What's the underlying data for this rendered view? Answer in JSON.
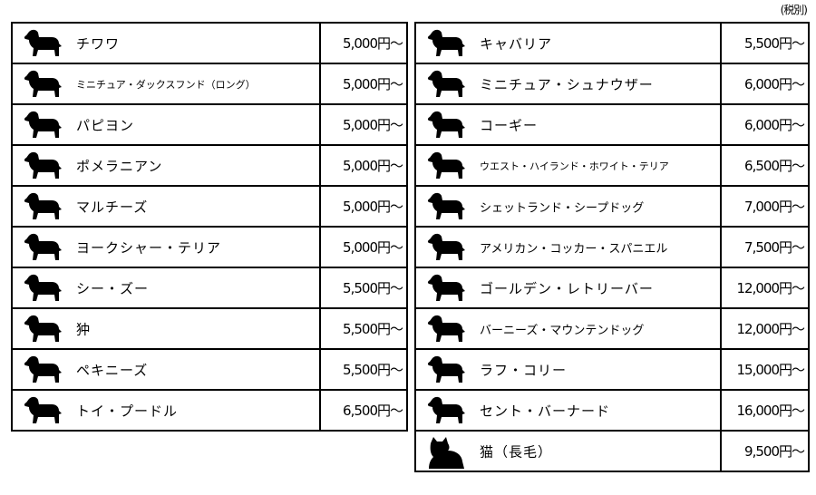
{
  "tax_note": "(税別)",
  "left_table": [
    {
      "name": "チワワ",
      "price": "5,000円〜",
      "icon": "chihuahua-icon"
    },
    {
      "name": "ミニチュア・ダックスフンド（ロング）",
      "price": "5,000円〜",
      "icon": "dachshund-icon"
    },
    {
      "name": "パピヨン",
      "price": "5,000円〜",
      "icon": "papillon-icon"
    },
    {
      "name": "ポメラニアン",
      "price": "5,000円〜",
      "icon": "pomeranian-icon"
    },
    {
      "name": "マルチーズ",
      "price": "5,000円〜",
      "icon": "maltese-icon"
    },
    {
      "name": "ヨークシャー・テリア",
      "price": "5,000円〜",
      "icon": "yorkshire-terrier-icon"
    },
    {
      "name": "シー・ズー",
      "price": "5,500円〜",
      "icon": "shih-tzu-icon"
    },
    {
      "name": "狆",
      "price": "5,500円〜",
      "icon": "japanese-chin-icon"
    },
    {
      "name": "ペキニーズ",
      "price": "5,500円〜",
      "icon": "pekingese-icon"
    },
    {
      "name": "トイ・プードル",
      "price": "6,500円〜",
      "icon": "toy-poodle-icon"
    }
  ],
  "right_table": [
    {
      "name": "キャバリア",
      "price": "5,500円〜",
      "icon": "cavalier-icon"
    },
    {
      "name": "ミニチュア・シュナウザー",
      "price": "6,000円〜",
      "icon": "schnauzer-icon"
    },
    {
      "name": "コーギー",
      "price": "6,000円〜",
      "icon": "corgi-icon"
    },
    {
      "name": "ウエスト・ハイランド・ホワイト・テリア",
      "price": "6,500円〜",
      "icon": "westie-icon"
    },
    {
      "name": "シェットランド・シープドッグ",
      "price": "7,000円〜",
      "icon": "sheltie-icon"
    },
    {
      "name": "アメリカン・コッカー・スパニエル",
      "price": "7,500円〜",
      "icon": "cocker-spaniel-icon"
    },
    {
      "name": "ゴールデン・レトリーバー",
      "price": "12,000円〜",
      "icon": "golden-retriever-icon"
    },
    {
      "name": "バーニーズ・マウンテンドッグ",
      "price": "12,000円〜",
      "icon": "bernese-icon"
    },
    {
      "name": "ラフ・コリー",
      "price": "15,000円〜",
      "icon": "rough-collie-icon"
    },
    {
      "name": "セント・バーナード",
      "price": "16,000円〜",
      "icon": "saint-bernard-icon"
    },
    {
      "name": "猫（長毛）",
      "price": "9,500円〜",
      "icon": "cat-icon"
    }
  ]
}
